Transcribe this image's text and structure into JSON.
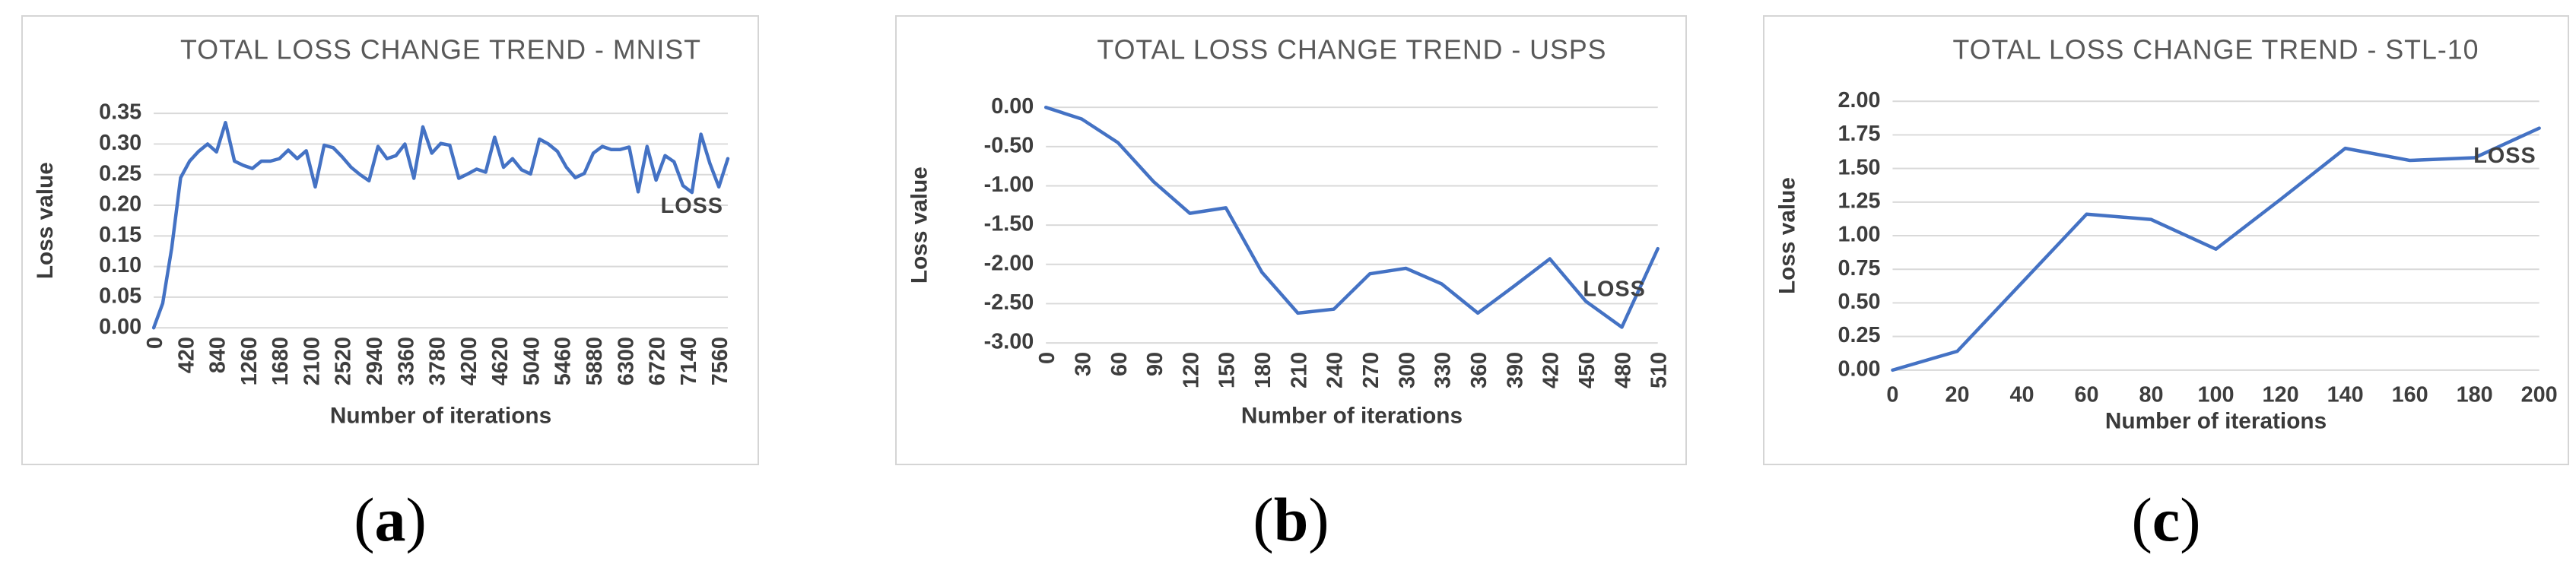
{
  "figure": {
    "captions": [
      {
        "open": "(",
        "letter": "a",
        "close": ")"
      },
      {
        "open": "(",
        "letter": "b",
        "close": ")"
      },
      {
        "open": "(",
        "letter": "c",
        "close": ")"
      }
    ]
  },
  "colors": {
    "line": "#4472C4",
    "gridline": "#d9d9d9",
    "panel_border": "#d5d5d5",
    "title_text": "#595959",
    "tick_text": "#3d3d3d"
  },
  "chart_data": [
    {
      "type": "line",
      "title": "TOTAL LOSS CHANGE TREND - MNIST",
      "xlabel": "Number of iterations",
      "ylabel": "Loss value",
      "ylim": [
        0,
        0.35
      ],
      "xlim": [
        0,
        7680
      ],
      "yticks": [
        0.35,
        0.3,
        0.25,
        0.2,
        0.15,
        0.1,
        0.05,
        0.0
      ],
      "xticks": [
        0,
        420,
        840,
        1260,
        1680,
        2100,
        2520,
        2940,
        3360,
        3780,
        4200,
        4620,
        5040,
        5460,
        5880,
        6300,
        6720,
        7140,
        7560
      ],
      "grid": true,
      "line_color": "#4472C4",
      "series": [
        {
          "name": "LOSS",
          "x": [
            0,
            120,
            240,
            360,
            480,
            600,
            720,
            840,
            960,
            1080,
            1200,
            1320,
            1440,
            1560,
            1680,
            1800,
            1920,
            2040,
            2160,
            2280,
            2400,
            2520,
            2640,
            2760,
            2880,
            3000,
            3120,
            3240,
            3360,
            3480,
            3600,
            3720,
            3840,
            3960,
            4080,
            4200,
            4320,
            4440,
            4560,
            4680,
            4800,
            4920,
            5040,
            5160,
            5280,
            5400,
            5520,
            5640,
            5760,
            5880,
            6000,
            6120,
            6240,
            6360,
            6480,
            6600,
            6720,
            6840,
            6960,
            7080,
            7200,
            7320,
            7440,
            7560,
            7680
          ],
          "values": [
            0.0,
            0.04,
            0.13,
            0.245,
            0.272,
            0.288,
            0.3,
            0.287,
            0.335,
            0.272,
            0.265,
            0.26,
            0.272,
            0.272,
            0.276,
            0.29,
            0.276,
            0.289,
            0.23,
            0.298,
            0.294,
            0.279,
            0.262,
            0.25,
            0.24,
            0.296,
            0.276,
            0.281,
            0.3,
            0.244,
            0.328,
            0.285,
            0.301,
            0.298,
            0.244,
            0.251,
            0.259,
            0.254,
            0.311,
            0.262,
            0.276,
            0.258,
            0.251,
            0.308,
            0.3,
            0.288,
            0.262,
            0.245,
            0.252,
            0.285,
            0.296,
            0.291,
            0.291,
            0.295,
            0.222,
            0.296,
            0.241,
            0.281,
            0.271,
            0.232,
            0.221,
            0.316,
            0.268,
            0.23,
            0.276
          ]
        }
      ]
    },
    {
      "type": "line",
      "title": "TOTAL LOSS CHANGE TREND - USPS",
      "xlabel": "Number of iterations",
      "ylabel": "Loss value",
      "ylim": [
        -3.0,
        0.0
      ],
      "xlim": [
        0,
        510
      ],
      "yticks": [
        0.0,
        -0.5,
        -1.0,
        -1.5,
        -2.0,
        -2.5,
        -3.0
      ],
      "xticks": [
        0,
        30,
        60,
        90,
        120,
        150,
        180,
        210,
        240,
        270,
        300,
        330,
        360,
        390,
        420,
        450,
        480,
        510
      ],
      "grid": true,
      "line_color": "#4472C4",
      "series": [
        {
          "name": "LOSS",
          "x": [
            0,
            30,
            60,
            90,
            120,
            150,
            180,
            210,
            240,
            270,
            300,
            330,
            360,
            390,
            420,
            450,
            480,
            510
          ],
          "values": [
            0.0,
            -0.15,
            -0.45,
            -0.95,
            -1.35,
            -1.28,
            -2.1,
            -2.62,
            -2.57,
            -2.12,
            -2.05,
            -2.25,
            -2.62,
            -2.28,
            -1.93,
            -2.47,
            -2.8,
            -1.8
          ]
        }
      ]
    },
    {
      "type": "line",
      "title": "TOTAL LOSS CHANGE TREND - STL-10",
      "xlabel": "Number of iterations",
      "ylabel": "Loss value",
      "ylim": [
        0.0,
        2.0
      ],
      "xlim": [
        0,
        200
      ],
      "yticks": [
        2.0,
        1.75,
        1.5,
        1.25,
        1.0,
        0.75,
        0.5,
        0.25,
        0.0
      ],
      "xticks": [
        0,
        20,
        40,
        60,
        80,
        100,
        120,
        140,
        160,
        180,
        200
      ],
      "grid": true,
      "line_color": "#4472C4",
      "series": [
        {
          "name": "LOSS",
          "x": [
            0,
            20,
            40,
            60,
            80,
            100,
            120,
            140,
            160,
            180,
            200
          ],
          "values": [
            0.0,
            0.14,
            0.65,
            1.16,
            1.12,
            0.9,
            1.27,
            1.65,
            1.56,
            1.58,
            1.8
          ]
        }
      ]
    }
  ]
}
